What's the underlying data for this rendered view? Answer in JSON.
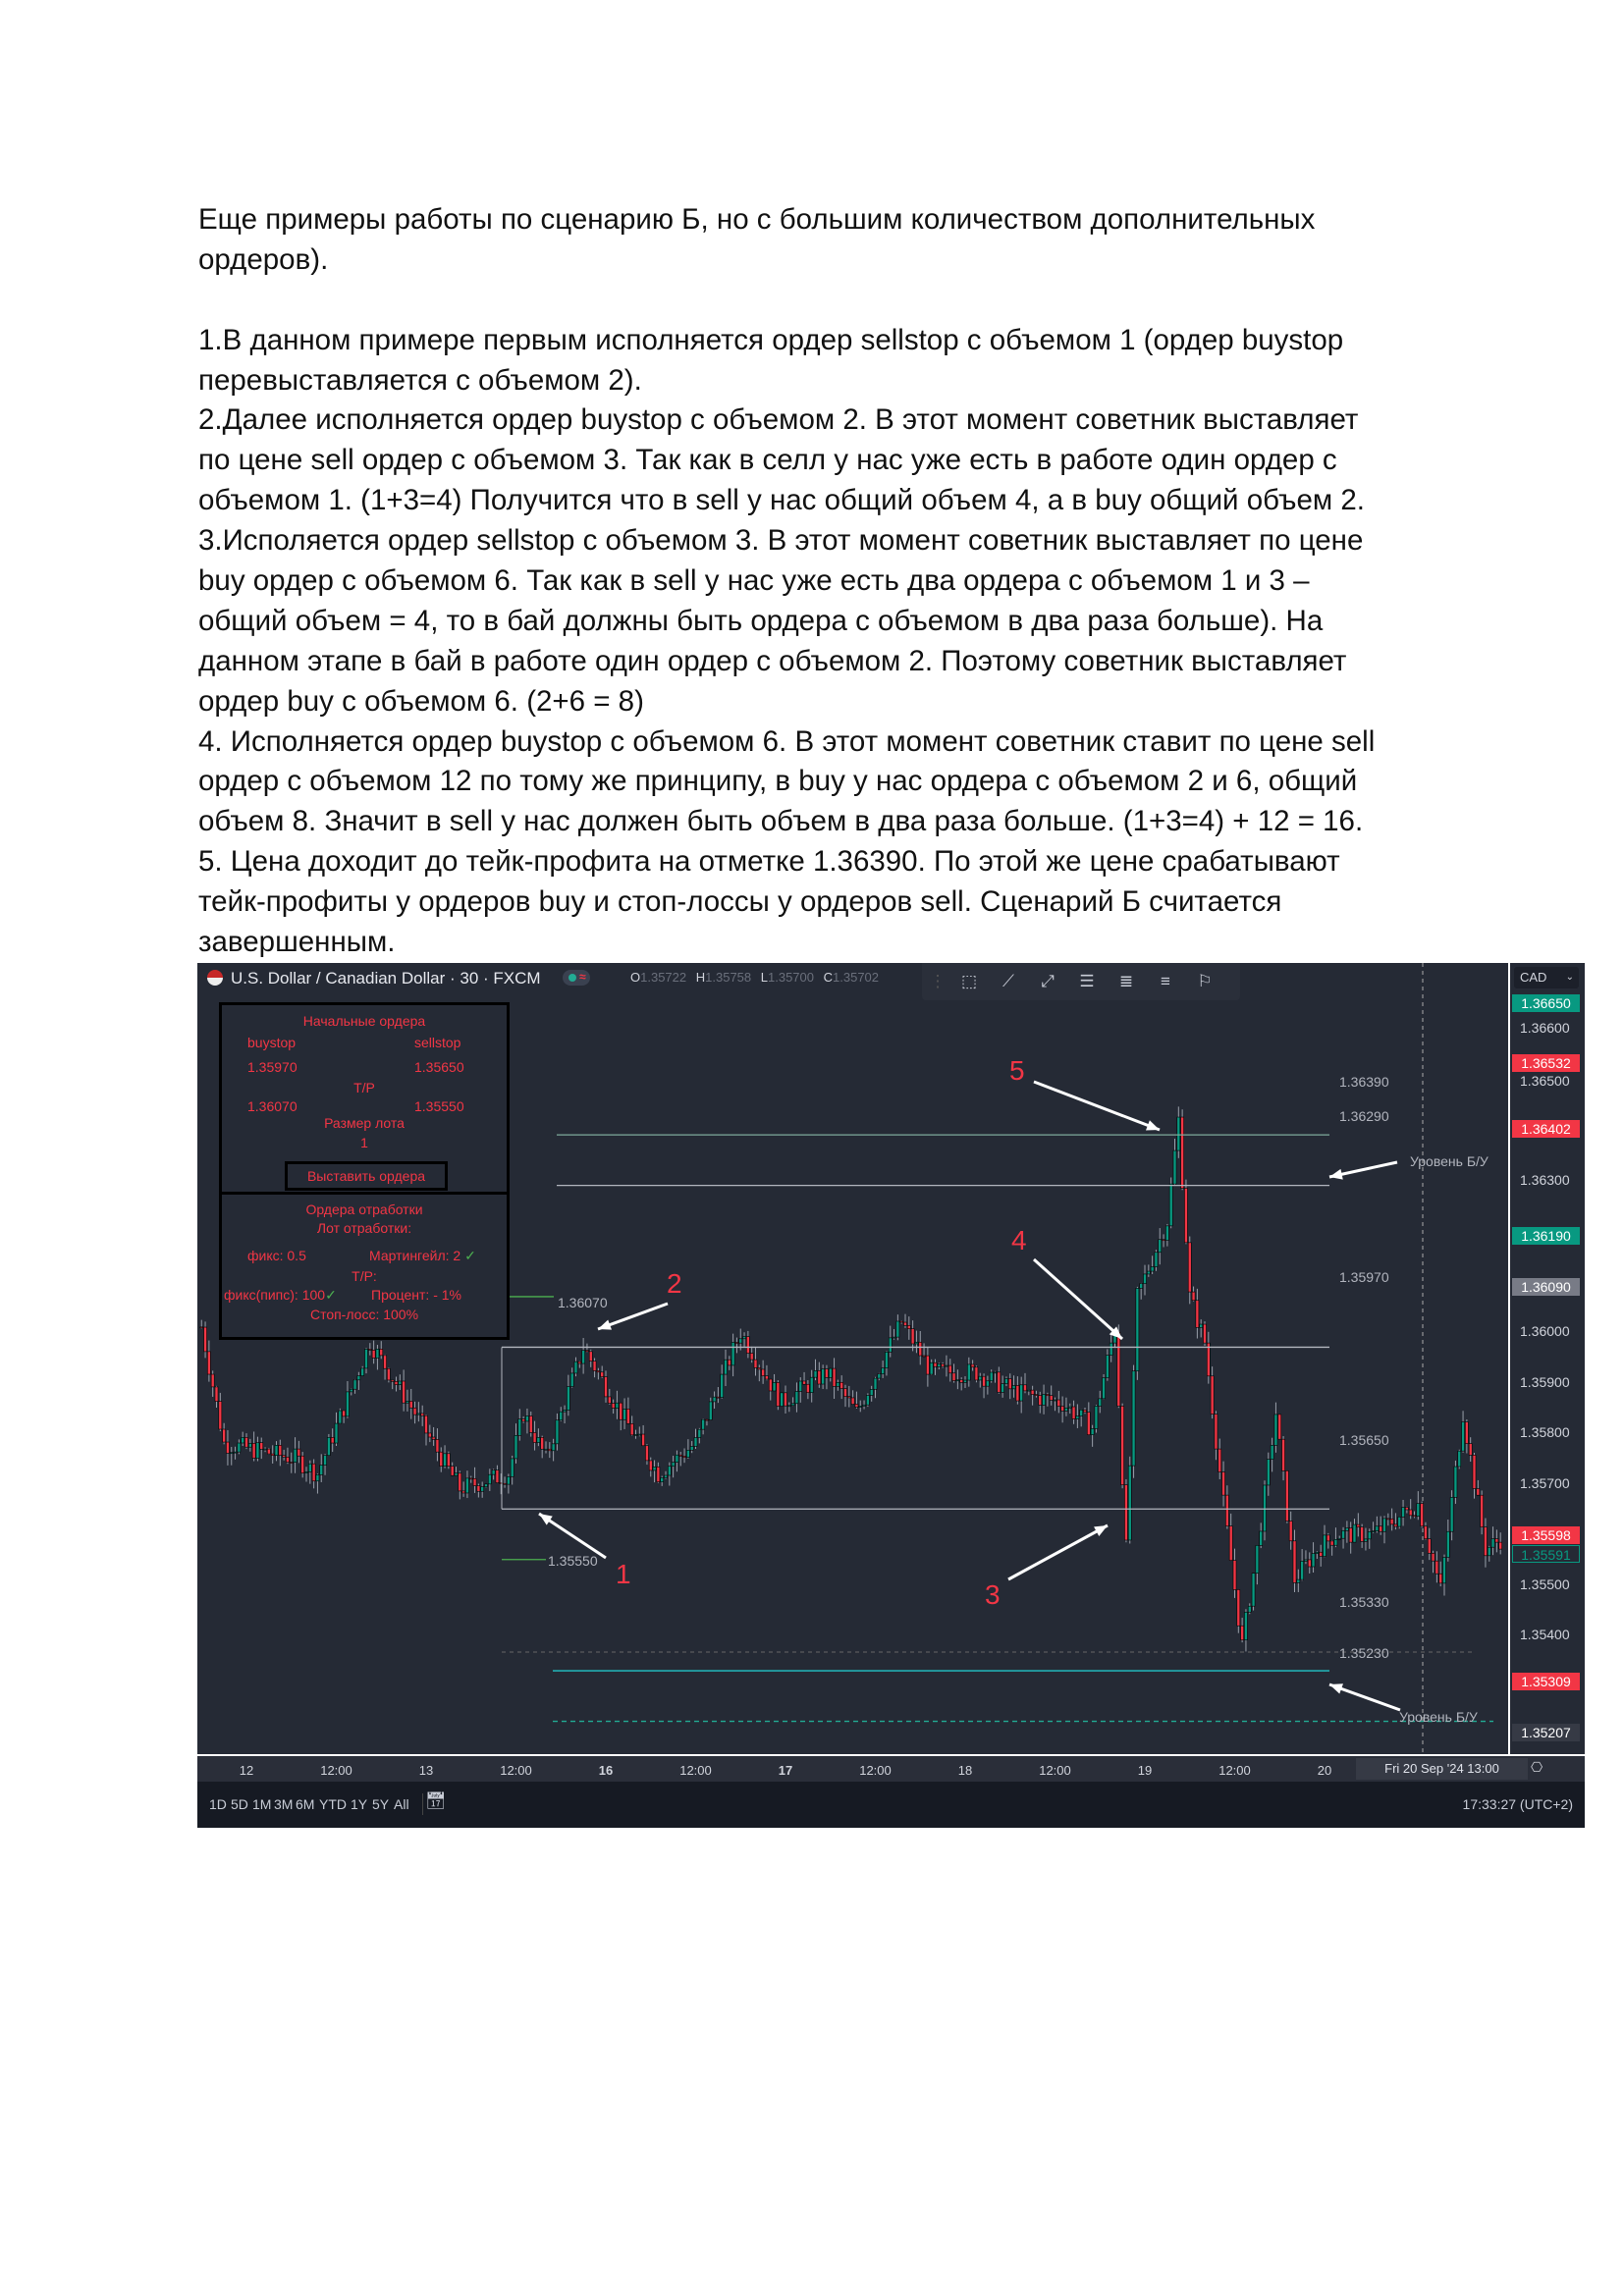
{
  "document": {
    "intro_lines": [
      "Еще примеры работы по сценарию Б, но с большим количеством дополнительных",
      "ордеров)."
    ],
    "body_lines": [
      "1.В данном примере первым исполняется ордер sellstop с объемом 1 (ордер buystop",
      "перевыставляется с объемом  2).",
      "2.Далее исполняется ордер buystop с объемом 2. В этот момент советник выставляет",
      "по цене sell ордер с объемом 3. Так как в селл у нас  уже есть в работе один ордер с",
      "объемом 1. (1+3=4) Получится что в sell у нас общий объем 4, а в buy общий объем  2.",
      "3.Исполяется ордер sellstop с объемом 3. В этот момент советник выставляет по цене",
      "buy ордер с объемом 6. Так как в sell у нас уже есть два ордера с объемом 1 и 3 –",
      "общий объем = 4, то в бай должны быть ордера с объемом в два раза больше). На",
      "данном этапе в бай в работе один ордер с объемом 2. Поэтому советник выставляет",
      "ордер buy с объемом 6. (2+6 = 8)",
      "4. Исполняется ордер buystop с объемом 6. В этот момент советник ставит по цене sell",
      "ордер с объемом 12 по тому же принципу, в buy у нас ордера с объемом 2 и 6, общий",
      "объем 8. Значит в sell у нас должен быть объем в два раза больше. (1+3=4) + 12 = 16.",
      "5. Цена доходит до тейк-профита на отметке 1.36390. По этой же цене срабатывают",
      "тейк-профиты у ордеров buy и стоп-лоссы у ордеров sell. Сценарий Б считается",
      "завершенным."
    ]
  },
  "chart": {
    "symbol": "U.S. Dollar / Canadian Dollar · 30 · FXCM",
    "ohlc": {
      "o_label": "O",
      "o": "1.35722",
      "h_label": "H",
      "h": "1.35758",
      "l_label": "L",
      "l": "1.35700",
      "c_label": "C",
      "c": "1.35702"
    },
    "status_icon": "≈",
    "currency": "CAD",
    "panel": {
      "title": "Начальные ордера",
      "buystop_label": "buystop",
      "sellstop_label": "sellstop",
      "buystop_price": "1.35970",
      "sellstop_price": "1.35650",
      "tp_label": "T/P",
      "buy_tp": "1.36070",
      "sell_tp": "1.35550",
      "lot_label": "Размер лота",
      "lot_value": "1",
      "place_button": "Выставить ордера",
      "recovery_title": "Ордера отработки",
      "recovery_lot_label": "Лот отработки:",
      "fix_lot": "фикс: 0.5",
      "martingale": "Мартингейл: 2",
      "tp2_label": "T/P:",
      "fix_pips": "фикс(пипс):  100",
      "percent": "Процент:   - 1%",
      "stop_loss": "Стоп-лосс: 100%",
      "check_icon": "✓"
    },
    "annotations": {
      "numbers": [
        "1",
        "2",
        "3",
        "4",
        "5"
      ],
      "breakeven_label": "Уровень Б/У"
    },
    "levels": [
      {
        "price": "1.36390",
        "color": "#7fa99b"
      },
      {
        "price": "1.36290",
        "color": "#b2b5be"
      },
      {
        "price": "1.35970",
        "color": "#b2b5be"
      },
      {
        "price": "1.35650",
        "color": "#b2b5be"
      },
      {
        "price": "1.35330",
        "color": "#22c5c8"
      },
      {
        "price": "1.35230",
        "color": "#22ab94"
      },
      {
        "price": "1.36070",
        "color": "#4caf50"
      },
      {
        "price": "1.35550",
        "color": "#4caf50"
      }
    ],
    "price_ticks": [
      "1.36600",
      "1.36500",
      "1.36300",
      "1.36000",
      "1.35900",
      "1.35800",
      "1.35700",
      "1.35500",
      "1.35400"
    ],
    "price_tags": [
      {
        "price": "1.36650",
        "bg": "#089981"
      },
      {
        "price": "1.36532",
        "bg": "#f23645"
      },
      {
        "price": "1.36402",
        "bg": "#f23645"
      },
      {
        "price": "1.36190",
        "bg": "#089981"
      },
      {
        "price": "1.36090",
        "bg": "#787b86"
      },
      {
        "price": "1.35598",
        "bg": "#f23645"
      },
      {
        "price": "1.35591",
        "bg": "outline"
      },
      {
        "price": "1.35309",
        "bg": "#f23645"
      },
      {
        "price": "1.35207",
        "bg": "#363a45"
      }
    ],
    "time_labels": [
      "12",
      "12:00",
      "13",
      "12:00",
      "16",
      "12:00",
      "17",
      "12:00",
      "18",
      "12:00",
      "19",
      "12:00",
      "20"
    ],
    "crosshair_time": "Fri 20 Sep '24   13:00",
    "ranges": [
      "1D",
      "5D",
      "1M",
      "3M",
      "6M",
      "YTD",
      "1Y",
      "5Y",
      "All"
    ],
    "clock": "17:33:27 (UTC+2)",
    "colors": {
      "up": "#089981",
      "down": "#f23645",
      "background": "#252a35"
    }
  },
  "chart_data": {
    "type": "candlestick",
    "timeframe": "30",
    "y_range": [
      1.3518,
      1.367
    ],
    "approx_close_path": [
      [
        "11 18:00",
        1.3601
      ],
      [
        "11 21:00",
        1.3578
      ],
      [
        "12 06:30",
        1.3575
      ],
      [
        "12 09:30",
        1.3572
      ],
      [
        "12 16:30",
        1.3598
      ],
      [
        "12 22:30",
        1.3584
      ],
      [
        "13 04:30",
        1.3569
      ],
      [
        "13 11:00",
        1.3572
      ],
      [
        "13 13:00",
        1.3584
      ],
      [
        "13 16:00",
        1.3575
      ],
      [
        "13 21:00",
        1.3597
      ],
      [
        "16 02:00",
        1.3584
      ],
      [
        "16 07:00",
        1.3572
      ],
      [
        "16 12:00",
        1.3578
      ],
      [
        "16 18:00",
        1.36
      ],
      [
        "16 23:30",
        1.3586
      ],
      [
        "17 05:30",
        1.3592
      ],
      [
        "17 09:30",
        1.3584
      ],
      [
        "17 15:30",
        1.3602
      ],
      [
        "17 19:30",
        1.3592
      ],
      [
        "18 01:30",
        1.3592
      ],
      [
        "18 07:00",
        1.3588
      ],
      [
        "18 13:00",
        1.3586
      ],
      [
        "18 17:00",
        1.3581
      ],
      [
        "18 20:00",
        1.3601
      ],
      [
        "18 21:30",
        1.3557
      ],
      [
        "18 23:00",
        1.3607
      ],
      [
        "19 03:00",
        1.3622
      ],
      [
        "19 04:30",
        1.3642
      ],
      [
        "19 06:00",
        1.3607
      ],
      [
        "19 08:00",
        1.3598
      ],
      [
        "19 10:30",
        1.3566
      ],
      [
        "19 13:00",
        1.3538
      ],
      [
        "19 15:00",
        1.3557
      ],
      [
        "19 17:30",
        1.3584
      ],
      [
        "19 20:00",
        1.3551
      ],
      [
        "19 23:00",
        1.3557
      ],
      [
        "20 01:30",
        1.356
      ],
      [
        "20 06:30",
        1.356
      ],
      [
        "20 12:30",
        1.3566
      ],
      [
        "20 15:30",
        1.3549
      ],
      [
        "20 18:30",
        1.3584
      ],
      [
        "20 21:30",
        1.3557
      ],
      [
        "20 23:30",
        1.3559
      ]
    ]
  }
}
